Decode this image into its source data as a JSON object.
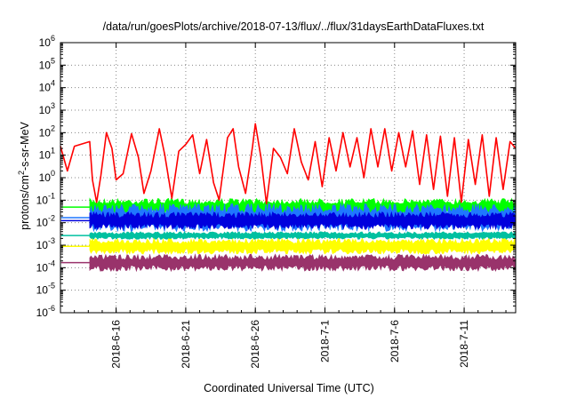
{
  "chart_data": {
    "type": "line",
    "title": "/data/run/goesPlots/archive/2018-07-13/flux/../flux/31daysEarthDataFluxes.txt",
    "xlabel": "Coordinated Universal Time (UTC)",
    "ylabel": {
      "base": "protons/cm",
      "sup": "2",
      "rest": "-s-sr-MeV"
    },
    "y_scale": "log",
    "ylim_exp": [
      -6,
      6
    ],
    "y_tick_base": "10",
    "y_tick_exponents": [
      "-6",
      "-5",
      "-4",
      "-3",
      "-2",
      "-1",
      "0",
      "1",
      "2",
      "3",
      "4",
      "5",
      "6"
    ],
    "xlim": [
      "2018-06-12",
      "2018-07-14.7"
    ],
    "x_ticks": [
      {
        "date": "2018-06-16",
        "label": "2018-6-16"
      },
      {
        "date": "2018-06-21",
        "label": "2018-6-21"
      },
      {
        "date": "2018-06-26",
        "label": "2018-6-26"
      },
      {
        "date": "2018-07-01",
        "label": "2018-7-1"
      },
      {
        "date": "2018-07-06",
        "label": "2018-7-6"
      },
      {
        "date": "2018-07-11",
        "label": "2018-7-11"
      }
    ],
    "grid": true,
    "grid_style": "dotted",
    "legend": "none",
    "series": [
      {
        "color": "#ff0000",
        "points": [
          [
            "2018-06-12",
            25
          ],
          [
            "2018-06-12.5",
            2
          ],
          [
            "2018-06-13",
            25
          ],
          [
            "2018-06-14.1",
            40
          ],
          [
            "2018-06-14.3",
            0.8
          ],
          [
            "2018-06-14.6",
            0.08
          ],
          [
            "2018-06-14.9",
            1.2
          ],
          [
            "2018-06-15.3",
            100
          ],
          [
            "2018-06-15.7",
            20
          ],
          [
            "2018-06-16",
            0.8
          ],
          [
            "2018-06-16.5",
            1.5
          ],
          [
            "2018-06-17.1",
            90
          ],
          [
            "2018-06-17.6",
            8
          ],
          [
            "2018-06-18",
            0.2
          ],
          [
            "2018-06-18.5",
            2
          ],
          [
            "2018-06-19.1",
            150
          ],
          [
            "2018-06-19.5",
            10
          ],
          [
            "2018-06-20",
            0.12
          ],
          [
            "2018-06-20.5",
            15
          ],
          [
            "2018-06-21",
            30
          ],
          [
            "2018-06-21.5",
            80
          ],
          [
            "2018-06-22",
            1.5
          ],
          [
            "2018-06-22.5",
            50
          ],
          [
            "2018-06-23",
            0.6
          ],
          [
            "2018-06-23.4",
            0.1
          ],
          [
            "2018-06-24",
            60
          ],
          [
            "2018-06-24.4",
            150
          ],
          [
            "2018-06-24.8",
            3
          ],
          [
            "2018-06-25.3",
            0.2
          ],
          [
            "2018-06-25.8",
            25
          ],
          [
            "2018-06-26",
            250
          ],
          [
            "2018-06-26.4",
            8
          ],
          [
            "2018-06-26.8",
            0.07
          ],
          [
            "2018-06-27.3",
            20
          ],
          [
            "2018-06-27.8",
            8
          ],
          [
            "2018-06-28.3",
            1.5
          ],
          [
            "2018-06-28.8",
            150
          ],
          [
            "2018-06-29.3",
            5
          ],
          [
            "2018-06-29.8",
            0.8
          ],
          [
            "2018-06-30.3",
            40
          ],
          [
            "2018-06-30.8",
            0.4
          ],
          [
            "2018-07-01.3",
            60
          ],
          [
            "2018-07-01.8",
            2
          ],
          [
            "2018-07-02.3",
            100
          ],
          [
            "2018-07-02.8",
            3
          ],
          [
            "2018-07-03.3",
            60
          ],
          [
            "2018-07-03.8",
            1
          ],
          [
            "2018-07-04.3",
            150
          ],
          [
            "2018-07-04.8",
            3
          ],
          [
            "2018-07-05.3",
            150
          ],
          [
            "2018-07-05.8",
            2
          ],
          [
            "2018-07-06.3",
            100
          ],
          [
            "2018-07-06.8",
            3
          ],
          [
            "2018-07-07.3",
            120
          ],
          [
            "2018-07-07.8",
            0.5
          ],
          [
            "2018-07-08.3",
            80
          ],
          [
            "2018-07-08.8",
            0.3
          ],
          [
            "2018-07-09.3",
            70
          ],
          [
            "2018-07-09.8",
            0.15
          ],
          [
            "2018-07-10.3",
            60
          ],
          [
            "2018-07-10.8",
            0.08
          ],
          [
            "2018-07-11.3",
            50
          ],
          [
            "2018-07-11.8",
            0.5
          ],
          [
            "2018-07-12.3",
            80
          ],
          [
            "2018-07-12.8",
            0.15
          ],
          [
            "2018-07-13.3",
            60
          ],
          [
            "2018-07-13.8",
            0.3
          ],
          [
            "2018-07-14.3",
            40
          ],
          [
            "2018-07-14.7",
            20
          ]
        ]
      },
      {
        "color": "#00ff00",
        "band": [
          0.02,
          0.12
        ],
        "start": "2018-06-14.1",
        "end": "2018-07-14.7"
      },
      {
        "color": "#1f77ff",
        "band": [
          0.004,
          0.07
        ],
        "start": "2018-06-14.1",
        "end": "2018-07-14.7"
      },
      {
        "color": "#0000dd",
        "band": [
          0.005,
          0.03
        ],
        "start": "2018-06-14.1",
        "end": "2018-07-14.7"
      },
      {
        "color": "#00c0a0",
        "band": [
          0.0018,
          0.004
        ],
        "start": "2018-06-14.1",
        "end": "2018-07-14.7"
      },
      {
        "color": "#ffff00",
        "band": [
          0.0004,
          0.002
        ],
        "start": "2018-06-14.1",
        "end": "2018-07-14.7"
      },
      {
        "color": "#99336b",
        "band": [
          7e-05,
          0.0004
        ],
        "start": "2018-06-14.1",
        "end": "2018-07-14.7"
      }
    ]
  }
}
